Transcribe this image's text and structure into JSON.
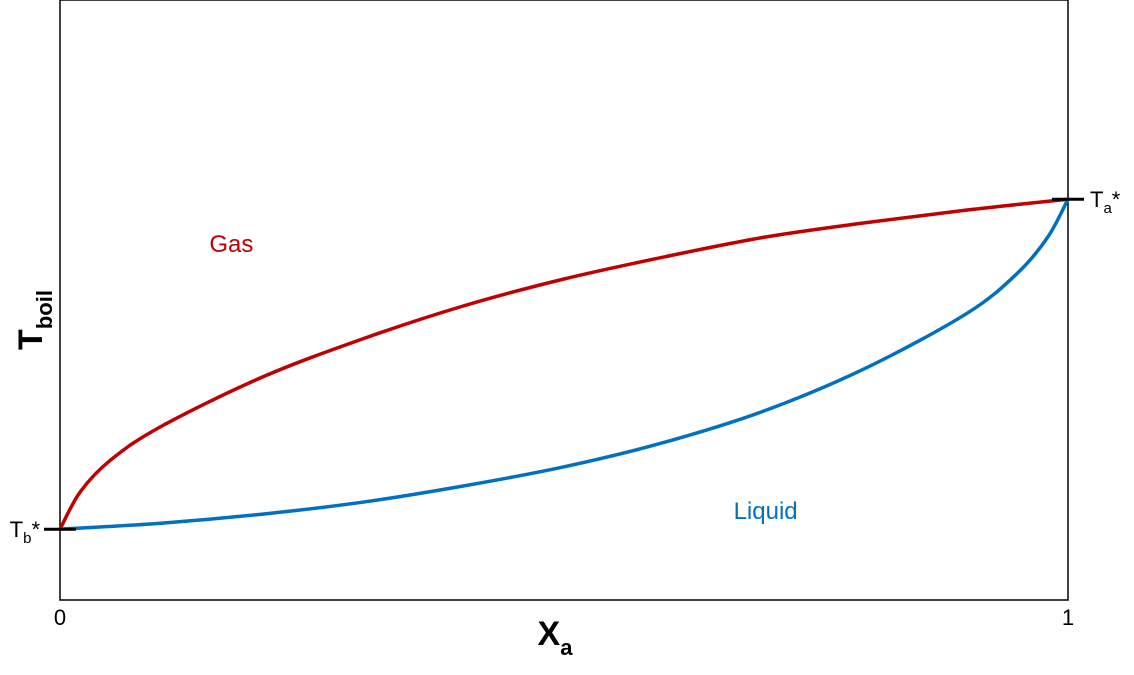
{
  "chart_data": {
    "type": "line",
    "title": "",
    "xlabel": "X",
    "xlabel_sub": "a",
    "ylabel": "T",
    "ylabel_sub": "boil",
    "xlim": [
      0,
      1
    ],
    "ylim": [
      0,
      1
    ],
    "grid": false,
    "x_ticks": [
      "0",
      "1"
    ],
    "y_ticks": [
      {
        "label": "T",
        "sub": "b",
        "sup": "*",
        "value": 0.118
      },
      {
        "label": "T",
        "sub": "a",
        "sup": "*",
        "value": 0.668
      }
    ],
    "series": [
      {
        "name": "Gas",
        "color": "#c00000",
        "x": [
          0,
          0.02,
          0.05,
          0.1,
          0.2,
          0.3,
          0.4,
          0.5,
          0.6,
          0.7,
          0.8,
          0.9,
          1.0
        ],
        "y": [
          0.118,
          0.18,
          0.233,
          0.289,
          0.371,
          0.435,
          0.49,
          0.535,
          0.572,
          0.605,
          0.629,
          0.65,
          0.668
        ]
      },
      {
        "name": "Liquid",
        "color": "#0070c0",
        "x": [
          0,
          0.1,
          0.2,
          0.3,
          0.4,
          0.5,
          0.6,
          0.7,
          0.8,
          0.9,
          0.95,
          0.98,
          1.0
        ],
        "y": [
          0.118,
          0.128,
          0.143,
          0.163,
          0.19,
          0.222,
          0.263,
          0.316,
          0.387,
          0.478,
          0.545,
          0.605,
          0.668
        ]
      }
    ],
    "annotations": [
      {
        "text": "Gas",
        "color": "#c00000",
        "x": 0.17,
        "y": 0.58
      },
      {
        "text": "Liquid",
        "color": "#0070c0",
        "x": 0.7,
        "y": 0.135
      }
    ]
  }
}
